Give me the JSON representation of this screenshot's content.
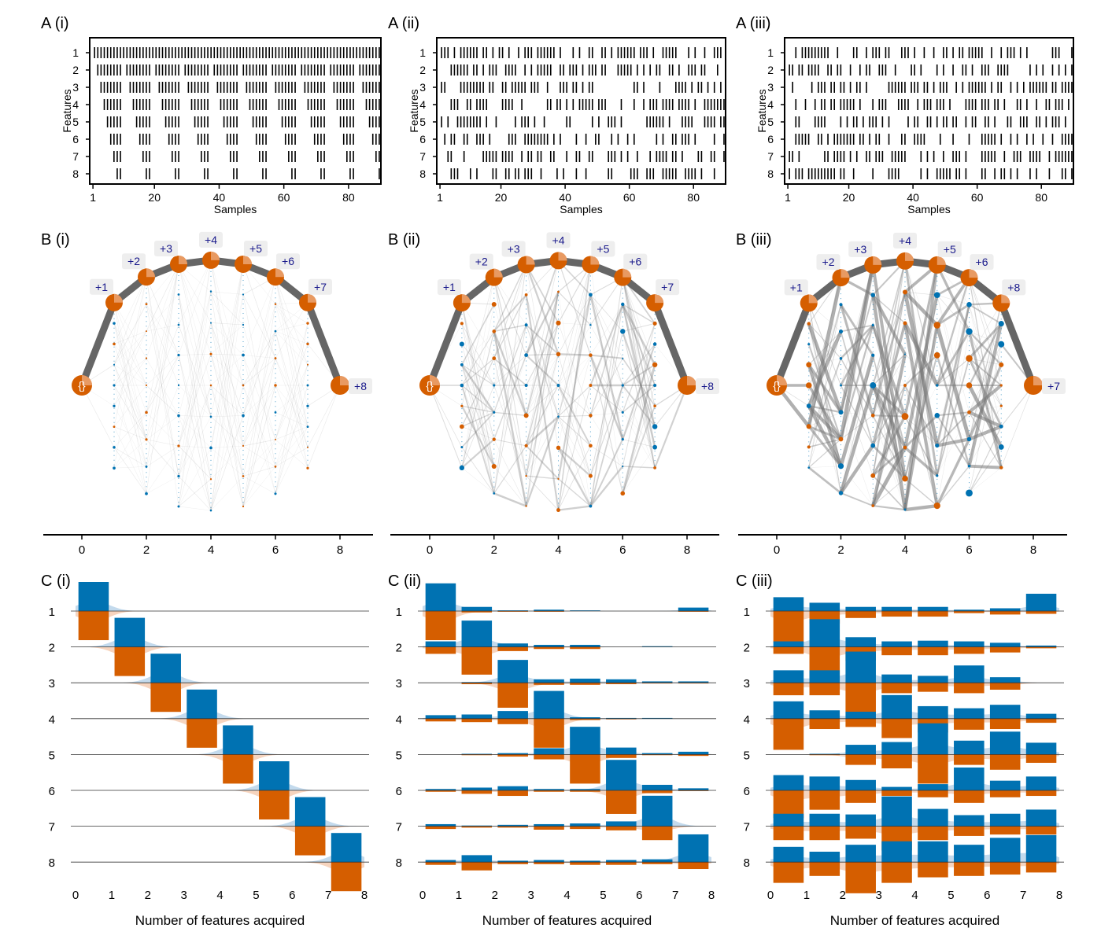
{
  "colors": {
    "blue": "#0072b2",
    "orange": "#d55e00",
    "light_blue": "#b9d3ea",
    "light_orange": "#f5cdb3",
    "gray": "#777777",
    "label_bg": "#eeeeee",
    "label_text": "#1a1a8c"
  },
  "chart_data": [
    {
      "type": "raster",
      "panel": "A (i)",
      "title": "A (i)",
      "xlabel": "Samples",
      "ylabel": "Features",
      "xlim": [
        0,
        90
      ],
      "xticks": [
        "1",
        "20",
        "40",
        "60",
        "80"
      ],
      "features": [
        "1",
        "2",
        "3",
        "4",
        "5",
        "6",
        "7",
        "8"
      ],
      "pattern": "nested",
      "period": 9
    },
    {
      "type": "raster",
      "panel": "A (ii)",
      "title": "A (ii)",
      "xlabel": "Samples",
      "ylabel": "Features",
      "xlim": [
        0,
        90
      ],
      "xticks": [
        "1",
        "20",
        "40",
        "60",
        "80"
      ],
      "features": [
        "1",
        "2",
        "3",
        "4",
        "5",
        "6",
        "7",
        "8"
      ],
      "pattern": "random",
      "seed": 7,
      "density": [
        0.78,
        0.7,
        0.62,
        0.55,
        0.45,
        0.42,
        0.4,
        0.38
      ]
    },
    {
      "type": "raster",
      "panel": "A (iii)",
      "title": "A (iii)",
      "xlabel": "Samples",
      "ylabel": "Features",
      "xlim": [
        0,
        90
      ],
      "xticks": [
        "1",
        "20",
        "40",
        "60",
        "80"
      ],
      "features": [
        "1",
        "2",
        "3",
        "4",
        "5",
        "6",
        "7",
        "8"
      ],
      "pattern": "random",
      "seed": 19,
      "density": [
        0.62,
        0.58,
        0.52,
        0.5,
        0.46,
        0.48,
        0.5,
        0.5
      ]
    },
    {
      "type": "graph",
      "panel": "B (i)",
      "title": "B (i)",
      "xticks": [
        "0",
        "2",
        "4",
        "6",
        "8"
      ],
      "path_labels": [
        "{}",
        "+1",
        "+2",
        "+3",
        "+4",
        "+5",
        "+6",
        "+7",
        "+8"
      ],
      "path_levels": [
        0,
        1,
        2,
        3,
        4,
        5,
        6,
        7,
        8
      ],
      "extra_edge_strength": 0.05,
      "seed": 3
    },
    {
      "type": "graph",
      "panel": "B (ii)",
      "title": "B (ii)",
      "xticks": [
        "0",
        "2",
        "4",
        "6",
        "8"
      ],
      "path_labels": [
        "{}",
        "+1",
        "+2",
        "+3",
        "+4",
        "+5",
        "+6",
        "+7",
        "+8"
      ],
      "path_levels": [
        0,
        1,
        2,
        3,
        4,
        5,
        6,
        7,
        8
      ],
      "extra_edge_strength": 0.35,
      "seed": 11
    },
    {
      "type": "graph",
      "panel": "B (iii)",
      "title": "B (iii)",
      "xticks": [
        "0",
        "2",
        "4",
        "6",
        "8"
      ],
      "path_labels": [
        "{}",
        "+1",
        "+2",
        "+3",
        "+4",
        "+5",
        "+6",
        "+8",
        "+7"
      ],
      "path_levels": [
        0,
        1,
        2,
        3,
        4,
        5,
        6,
        7,
        8
      ],
      "extra_edge_strength": 0.75,
      "seed": 29
    },
    {
      "type": "paired_histogram",
      "panel": "C (i)",
      "title": "C (i)",
      "xlabel": "Number of features acquired",
      "xlim": [
        0,
        8
      ],
      "xticks": [
        "0",
        "1",
        "2",
        "3",
        "4",
        "5",
        "6",
        "7",
        "8"
      ],
      "rows": [
        "1",
        "2",
        "3",
        "4",
        "5",
        "6",
        "7",
        "8"
      ],
      "bins": [
        0.5,
        1.5,
        2.5,
        3.5,
        4.5,
        5.5,
        6.5,
        7.5
      ],
      "blue": [
        [
          0.42,
          0,
          0,
          0,
          0,
          0,
          0,
          0
        ],
        [
          0,
          0.42,
          0,
          0,
          0,
          0,
          0,
          0
        ],
        [
          0,
          0,
          0.42,
          0,
          0,
          0,
          0,
          0
        ],
        [
          0,
          0,
          0,
          0.42,
          0,
          0,
          0,
          0
        ],
        [
          0,
          0,
          0,
          0,
          0.42,
          0,
          0,
          0
        ],
        [
          0,
          0,
          0,
          0,
          0,
          0.42,
          0,
          0
        ],
        [
          0,
          0,
          0,
          0,
          0,
          0,
          0.42,
          0
        ],
        [
          0,
          0,
          0,
          0,
          0,
          0,
          0,
          0.42
        ]
      ],
      "orange": [
        [
          0.42,
          0,
          0,
          0,
          0,
          0,
          0,
          0
        ],
        [
          0,
          0.42,
          0,
          0,
          0,
          0,
          0,
          0
        ],
        [
          0,
          0,
          0.42,
          0,
          0,
          0,
          0,
          0
        ],
        [
          0,
          0,
          0,
          0.42,
          0,
          0,
          0,
          0
        ],
        [
          0,
          0,
          0,
          0,
          0.42,
          0,
          0,
          0
        ],
        [
          0,
          0,
          0,
          0,
          0,
          0.42,
          0,
          0
        ],
        [
          0,
          0,
          0,
          0,
          0,
          0,
          0.42,
          0
        ],
        [
          0,
          0,
          0,
          0,
          0,
          0,
          0,
          0.42
        ]
      ]
    },
    {
      "type": "paired_histogram",
      "panel": "C (ii)",
      "title": "C (ii)",
      "xlabel": "Number of features acquired",
      "xlim": [
        0,
        8
      ],
      "xticks": [
        "0",
        "1",
        "2",
        "3",
        "4",
        "5",
        "6",
        "7",
        "8"
      ],
      "rows": [
        "1",
        "2",
        "3",
        "4",
        "5",
        "6",
        "7",
        "8"
      ],
      "bins": [
        0.5,
        1.5,
        2.5,
        3.5,
        4.5,
        5.5,
        6.5,
        7.5
      ],
      "blue": [
        [
          0.4,
          0.06,
          0.01,
          0.02,
          0.01,
          0,
          0,
          0.05
        ],
        [
          0.08,
          0.38,
          0.05,
          0.03,
          0.03,
          0,
          0.01,
          0
        ],
        [
          0,
          0.01,
          0.33,
          0.05,
          0.06,
          0.05,
          0.02,
          0.02
        ],
        [
          0.05,
          0.06,
          0.11,
          0.4,
          0.02,
          0.01,
          0.01,
          0
        ],
        [
          0,
          0.01,
          0.02,
          0.09,
          0.4,
          0.1,
          0.02,
          0.04
        ],
        [
          0.02,
          0.04,
          0.06,
          0.02,
          0.02,
          0.44,
          0.08,
          0.03
        ],
        [
          0.03,
          0.01,
          0.02,
          0.03,
          0.04,
          0.07,
          0.44,
          0
        ],
        [
          0.03,
          0.1,
          0.02,
          0.03,
          0.02,
          0.03,
          0.04,
          0.4
        ]
      ],
      "orange": [
        [
          0.42,
          0.02,
          0.01,
          0.01,
          0,
          0,
          0,
          0.01
        ],
        [
          0.1,
          0.4,
          0.06,
          0.03,
          0.03,
          0,
          0,
          0
        ],
        [
          0,
          0.02,
          0.36,
          0.03,
          0.03,
          0.02,
          0.01,
          0.01
        ],
        [
          0.04,
          0.05,
          0.08,
          0.42,
          0.02,
          0.01,
          0,
          0
        ],
        [
          0,
          0.01,
          0.03,
          0.07,
          0.42,
          0.05,
          0.01,
          0.02
        ],
        [
          0.02,
          0.05,
          0.08,
          0.02,
          0.02,
          0.34,
          0.04,
          0.01
        ],
        [
          0.04,
          0.02,
          0.02,
          0.05,
          0.04,
          0.06,
          0.2,
          0
        ],
        [
          0.04,
          0.12,
          0.03,
          0.03,
          0.04,
          0.04,
          0.03,
          0.1
        ]
      ]
    },
    {
      "type": "paired_histogram",
      "panel": "C (iii)",
      "title": "C (iii)",
      "xlabel": "Number of features acquired",
      "xlim": [
        0,
        8
      ],
      "xticks": [
        "0",
        "1",
        "2",
        "3",
        "4",
        "5",
        "6",
        "7",
        "8"
      ],
      "rows": [
        "1",
        "2",
        "3",
        "4",
        "5",
        "6",
        "7",
        "8"
      ],
      "bins": [
        0.5,
        1.5,
        2.5,
        3.5,
        4.5,
        5.5,
        6.5,
        7.5
      ],
      "blue": [
        [
          0.2,
          0.12,
          0.06,
          0.06,
          0.06,
          0.02,
          0.04,
          0.25
        ],
        [
          0.08,
          0.4,
          0.14,
          0.08,
          0.09,
          0.08,
          0.06,
          0.02
        ],
        [
          0.18,
          0.18,
          0.45,
          0.12,
          0.1,
          0.25,
          0.08,
          0
        ],
        [
          0.25,
          0.12,
          0.1,
          0.34,
          0.18,
          0.15,
          0.2,
          0.07
        ],
        [
          0,
          0.01,
          0.14,
          0.18,
          0.45,
          0.2,
          0.33,
          0.17
        ],
        [
          0.22,
          0.2,
          0.15,
          0.05,
          0.09,
          0.33,
          0.14,
          0.2
        ],
        [
          0.18,
          0.18,
          0.17,
          0.43,
          0.25,
          0.16,
          0.18,
          0.24
        ],
        [
          0.22,
          0.15,
          0.25,
          0.3,
          0.3,
          0.25,
          0.35,
          0.39
        ]
      ],
      "orange": [
        [
          0.45,
          0.18,
          0.1,
          0.08,
          0.08,
          0.03,
          0.05,
          0.04
        ],
        [
          0.1,
          0.45,
          0.2,
          0.12,
          0.12,
          0.1,
          0.08,
          0.02
        ],
        [
          0.18,
          0.18,
          0.42,
          0.15,
          0.13,
          0.15,
          0.1,
          0
        ],
        [
          0.45,
          0.15,
          0.12,
          0.28,
          0.2,
          0.16,
          0.15,
          0.06
        ],
        [
          0,
          0.01,
          0.15,
          0.2,
          0.42,
          0.15,
          0.22,
          0.12
        ],
        [
          0.4,
          0.28,
          0.18,
          0.08,
          0.1,
          0.18,
          0.1,
          0.08
        ],
        [
          0.2,
          0.2,
          0.18,
          0.35,
          0.2,
          0.14,
          0.12,
          0.12
        ],
        [
          0.3,
          0.2,
          0.45,
          0.3,
          0.22,
          0.2,
          0.18,
          0.15
        ]
      ]
    }
  ]
}
